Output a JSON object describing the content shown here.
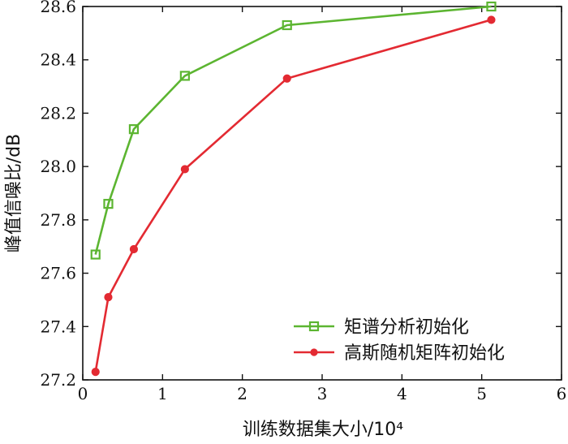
{
  "chart_data": {
    "type": "line",
    "xlabel": "训练数据集大小/10⁴",
    "ylabel": "峰值信噪比/dB",
    "xlim": [
      0,
      6
    ],
    "ylim": [
      27.2,
      28.6
    ],
    "xticks": [
      "0",
      "1",
      "2",
      "3",
      "4",
      "5",
      "6"
    ],
    "yticks": [
      "27.2",
      "27.4",
      "27.6",
      "27.8",
      "28.0",
      "28.2",
      "28.4",
      "28.6"
    ],
    "legend_position": "bottom-right",
    "grid": false,
    "series": [
      {
        "name": "矩谱分析初始化",
        "color": "#5cb531",
        "marker": "square",
        "points": [
          {
            "x": 0.16,
            "y": 27.67
          },
          {
            "x": 0.32,
            "y": 27.86
          },
          {
            "x": 0.64,
            "y": 28.14
          },
          {
            "x": 1.28,
            "y": 28.34
          },
          {
            "x": 2.56,
            "y": 28.53
          },
          {
            "x": 5.12,
            "y": 28.6
          }
        ]
      },
      {
        "name": "高斯随机矩阵初始化",
        "color": "#e32a32",
        "marker": "circle",
        "points": [
          {
            "x": 0.16,
            "y": 27.23
          },
          {
            "x": 0.32,
            "y": 27.51
          },
          {
            "x": 0.64,
            "y": 27.69
          },
          {
            "x": 1.28,
            "y": 27.99
          },
          {
            "x": 2.56,
            "y": 28.33
          },
          {
            "x": 5.12,
            "y": 28.55
          }
        ]
      }
    ]
  }
}
